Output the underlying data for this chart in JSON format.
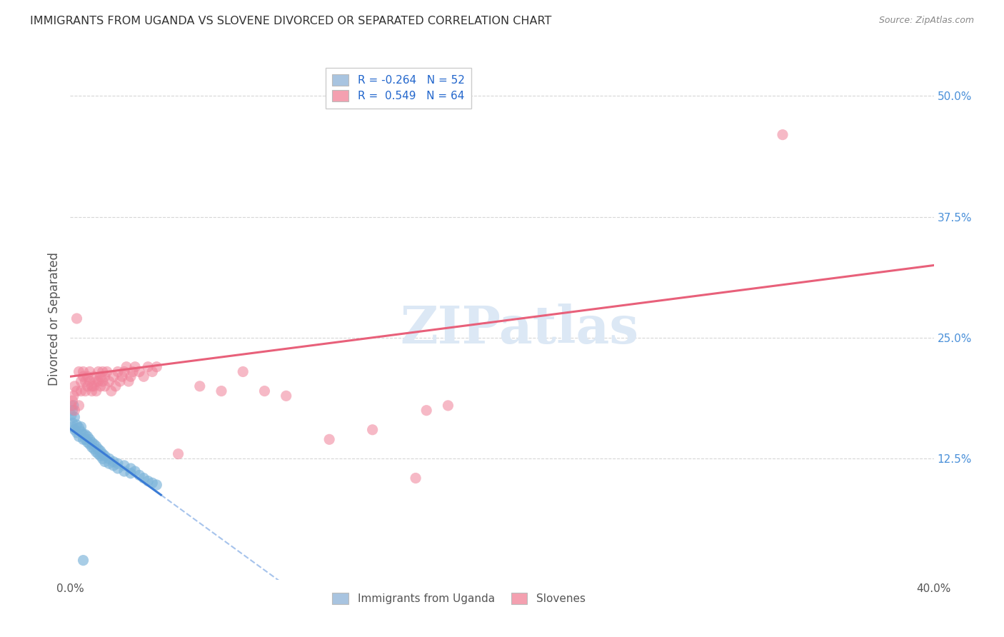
{
  "title": "IMMIGRANTS FROM UGANDA VS SLOVENE DIVORCED OR SEPARATED CORRELATION CHART",
  "source": "Source: ZipAtlas.com",
  "ylabel": "Divorced or Separated",
  "ytick_labels": [
    "12.5%",
    "25.0%",
    "37.5%",
    "50.0%"
  ],
  "ytick_values": [
    0.125,
    0.25,
    0.375,
    0.5
  ],
  "xlim": [
    0.0,
    0.4
  ],
  "ylim": [
    0.0,
    0.54
  ],
  "legend_entry1": "R = -0.264   N = 52",
  "legend_entry2": "R =  0.549   N = 64",
  "legend1_color": "#a8c4e0",
  "legend2_color": "#f4a0b0",
  "legend2_labels": [
    "Immigrants from Uganda",
    "Slovenes"
  ],
  "legend2_colors": [
    "#a8c4e0",
    "#f4a0b0"
  ],
  "watermark_text": "ZIPatlas",
  "uganda_color": "#7ab3d9",
  "slovene_color": "#f08098",
  "uganda_scatter": [
    [
      0.0005,
      0.17
    ],
    [
      0.001,
      0.175
    ],
    [
      0.0015,
      0.18
    ],
    [
      0.002,
      0.168
    ],
    [
      0.001,
      0.162
    ],
    [
      0.0008,
      0.158
    ],
    [
      0.002,
      0.155
    ],
    [
      0.003,
      0.16
    ],
    [
      0.003,
      0.152
    ],
    [
      0.004,
      0.157
    ],
    [
      0.004,
      0.148
    ],
    [
      0.005,
      0.153
    ],
    [
      0.005,
      0.158
    ],
    [
      0.006,
      0.15
    ],
    [
      0.006,
      0.145
    ],
    [
      0.007,
      0.15
    ],
    [
      0.007,
      0.145
    ],
    [
      0.008,
      0.148
    ],
    [
      0.008,
      0.142
    ],
    [
      0.009,
      0.145
    ],
    [
      0.009,
      0.14
    ],
    [
      0.01,
      0.142
    ],
    [
      0.01,
      0.137
    ],
    [
      0.011,
      0.14
    ],
    [
      0.011,
      0.135
    ],
    [
      0.012,
      0.138
    ],
    [
      0.012,
      0.132
    ],
    [
      0.013,
      0.135
    ],
    [
      0.013,
      0.13
    ],
    [
      0.014,
      0.133
    ],
    [
      0.014,
      0.128
    ],
    [
      0.015,
      0.13
    ],
    [
      0.015,
      0.125
    ],
    [
      0.016,
      0.128
    ],
    [
      0.016,
      0.122
    ],
    [
      0.018,
      0.125
    ],
    [
      0.018,
      0.12
    ],
    [
      0.02,
      0.122
    ],
    [
      0.02,
      0.118
    ],
    [
      0.022,
      0.12
    ],
    [
      0.022,
      0.115
    ],
    [
      0.025,
      0.118
    ],
    [
      0.025,
      0.112
    ],
    [
      0.028,
      0.115
    ],
    [
      0.028,
      0.11
    ],
    [
      0.03,
      0.112
    ],
    [
      0.032,
      0.108
    ],
    [
      0.034,
      0.105
    ],
    [
      0.036,
      0.102
    ],
    [
      0.038,
      0.1
    ],
    [
      0.04,
      0.098
    ],
    [
      0.006,
      0.02
    ]
  ],
  "slovene_scatter": [
    [
      0.0005,
      0.18
    ],
    [
      0.001,
      0.185
    ],
    [
      0.0015,
      0.19
    ],
    [
      0.002,
      0.175
    ],
    [
      0.002,
      0.2
    ],
    [
      0.003,
      0.195
    ],
    [
      0.003,
      0.27
    ],
    [
      0.004,
      0.18
    ],
    [
      0.004,
      0.215
    ],
    [
      0.005,
      0.205
    ],
    [
      0.005,
      0.195
    ],
    [
      0.006,
      0.215
    ],
    [
      0.006,
      0.21
    ],
    [
      0.007,
      0.205
    ],
    [
      0.007,
      0.195
    ],
    [
      0.008,
      0.21
    ],
    [
      0.008,
      0.2
    ],
    [
      0.009,
      0.205
    ],
    [
      0.009,
      0.215
    ],
    [
      0.01,
      0.2
    ],
    [
      0.01,
      0.195
    ],
    [
      0.011,
      0.21
    ],
    [
      0.011,
      0.2
    ],
    [
      0.012,
      0.205
    ],
    [
      0.012,
      0.195
    ],
    [
      0.013,
      0.215
    ],
    [
      0.013,
      0.205
    ],
    [
      0.014,
      0.21
    ],
    [
      0.014,
      0.2
    ],
    [
      0.015,
      0.215
    ],
    [
      0.015,
      0.205
    ],
    [
      0.016,
      0.21
    ],
    [
      0.016,
      0.2
    ],
    [
      0.017,
      0.215
    ],
    [
      0.018,
      0.205
    ],
    [
      0.019,
      0.195
    ],
    [
      0.02,
      0.21
    ],
    [
      0.021,
      0.2
    ],
    [
      0.022,
      0.215
    ],
    [
      0.023,
      0.205
    ],
    [
      0.024,
      0.21
    ],
    [
      0.025,
      0.215
    ],
    [
      0.026,
      0.22
    ],
    [
      0.027,
      0.205
    ],
    [
      0.028,
      0.21
    ],
    [
      0.029,
      0.215
    ],
    [
      0.03,
      0.22
    ],
    [
      0.032,
      0.215
    ],
    [
      0.034,
      0.21
    ],
    [
      0.036,
      0.22
    ],
    [
      0.038,
      0.215
    ],
    [
      0.04,
      0.22
    ],
    [
      0.05,
      0.13
    ],
    [
      0.06,
      0.2
    ],
    [
      0.07,
      0.195
    ],
    [
      0.08,
      0.215
    ],
    [
      0.09,
      0.195
    ],
    [
      0.1,
      0.19
    ],
    [
      0.12,
      0.145
    ],
    [
      0.14,
      0.155
    ],
    [
      0.16,
      0.105
    ],
    [
      0.165,
      0.175
    ],
    [
      0.175,
      0.18
    ],
    [
      0.33,
      0.46
    ]
  ],
  "background_color": "#ffffff",
  "grid_color": "#cccccc",
  "title_color": "#333333",
  "axis_label_color": "#555555",
  "ytick_color": "#4a90d9",
  "watermark_color": "#dce8f5",
  "blue_line_color": "#3a7bd5",
  "pink_line_color": "#e8607a"
}
